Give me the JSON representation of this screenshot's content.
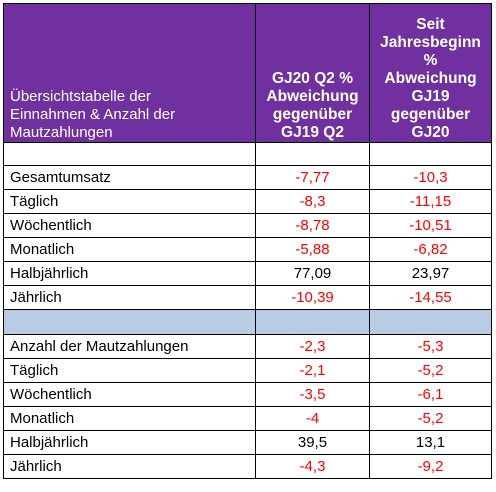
{
  "header": {
    "label_lines": [
      "Übersichtstabelle der",
      "Einnahmen & Anzahl der",
      "Mautzahlungen"
    ],
    "col1_lines": [
      "GJ20 Q2 %",
      "Abweichung",
      "gegenüber",
      "GJ19 Q2"
    ],
    "col2_lines": [
      "Seit",
      "Jahresbeginn",
      "%",
      "Abweichung",
      "GJ19",
      "gegenüber",
      "GJ20"
    ]
  },
  "revenue_rows": [
    {
      "label": "Gesamtumsatz",
      "q2": "-7,77",
      "ytd": "-10,3"
    },
    {
      "label": "Täglich",
      "q2": "-8,3",
      "ytd": "-11,15"
    },
    {
      "label": "Wöchentlich",
      "q2": "-8,78",
      "ytd": "-10,51"
    },
    {
      "label": "Monatlich",
      "q2": "-5,88",
      "ytd": "-6,82"
    },
    {
      "label": "Halbjährlich",
      "q2": "77,09",
      "ytd": "23,97"
    },
    {
      "label": "Jährlich",
      "q2": "-10,39",
      "ytd": "-14,55"
    }
  ],
  "count_rows": [
    {
      "label": "Anzahl der Mautzahlungen",
      "q2": "-2,3",
      "ytd": "-5,3"
    },
    {
      "label": "Täglich",
      "q2": "-2,1",
      "ytd": "-5,2"
    },
    {
      "label": "Wöchentlich",
      "q2": "-3,5",
      "ytd": "-6,1"
    },
    {
      "label": "Monatlich",
      "q2": "-4",
      "ytd": "-5,2"
    },
    {
      "label": "Halbjährlich",
      "q2": "39,5",
      "ytd": "13,1"
    },
    {
      "label": "Jährlich",
      "q2": "-4,3",
      "ytd": "-9,2"
    }
  ],
  "colors": {
    "header_bg": "#7030a0",
    "separator_bg": "#b8cce4",
    "negative": "#ff0000",
    "positive": "#000000"
  }
}
